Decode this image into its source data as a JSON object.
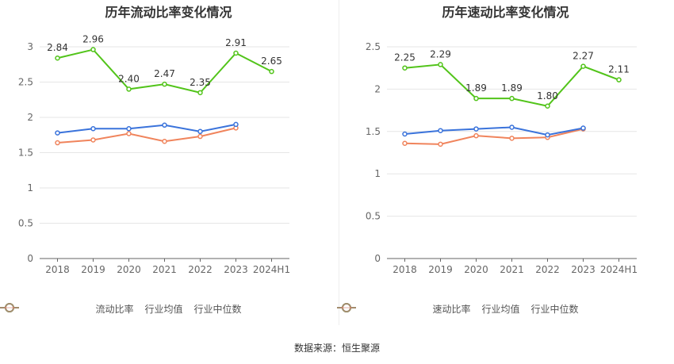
{
  "chart_data": [
    {
      "type": "line",
      "title": "历年流动比率变化情况",
      "categories": [
        "2018",
        "2019",
        "2020",
        "2021",
        "2022",
        "2023",
        "2024H1"
      ],
      "ylim": [
        0,
        3
      ],
      "yticks": [
        "0",
        "0.5",
        "1",
        "1.5",
        "2",
        "2.5",
        "3"
      ],
      "ytick_values": [
        0,
        0.5,
        1,
        1.5,
        2,
        2.5,
        3
      ],
      "grid": true,
      "legend_position": "bottom",
      "series": [
        {
          "name": "流动比率",
          "color": "#52c41a",
          "values": [
            2.84,
            2.96,
            2.4,
            2.47,
            2.35,
            2.91,
            2.65
          ],
          "labels": [
            "2.84",
            "2.96",
            "2.40",
            "2.47",
            "2.35",
            "2.91",
            "2.65"
          ]
        },
        {
          "name": "行业均值",
          "color": "#3a73db",
          "values": [
            1.78,
            1.84,
            1.84,
            1.89,
            1.8,
            1.9,
            null
          ]
        },
        {
          "name": "行业中位数",
          "color": "#f0845c",
          "values": [
            1.64,
            1.68,
            1.77,
            1.66,
            1.73,
            1.85,
            null
          ]
        }
      ]
    },
    {
      "type": "line",
      "title": "历年速动比率变化情况",
      "categories": [
        "2018",
        "2019",
        "2020",
        "2021",
        "2022",
        "2023",
        "2024H1"
      ],
      "ylim": [
        0,
        2.5
      ],
      "yticks": [
        "0",
        "0.5",
        "1",
        "1.5",
        "2",
        "2.5"
      ],
      "ytick_values": [
        0,
        0.5,
        1,
        1.5,
        2,
        2.5
      ],
      "grid": true,
      "legend_position": "bottom",
      "series": [
        {
          "name": "速动比率",
          "color": "#52c41a",
          "values": [
            2.25,
            2.29,
            1.89,
            1.89,
            1.8,
            2.27,
            2.11
          ],
          "labels": [
            "2.25",
            "2.29",
            "1.89",
            "1.89",
            "1.80",
            "2.27",
            "2.11"
          ]
        },
        {
          "name": "行业均值",
          "color": "#3a73db",
          "values": [
            1.47,
            1.51,
            1.53,
            1.55,
            1.46,
            1.54,
            null
          ]
        },
        {
          "name": "行业中位数",
          "color": "#f0845c",
          "values": [
            1.36,
            1.35,
            1.45,
            1.42,
            1.43,
            1.53,
            null
          ]
        }
      ]
    }
  ],
  "source": "数据来源：恒生聚源"
}
